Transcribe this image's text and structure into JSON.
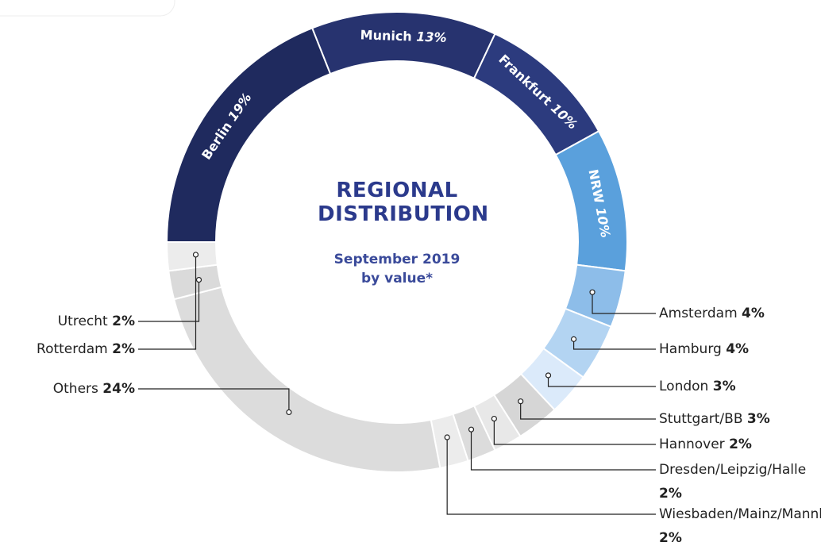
{
  "chart_data": {
    "type": "donut",
    "title": "REGIONAL DISTRIBUTION",
    "subtitle": "September 2019 by value*",
    "categories": [
      "Berlin",
      "Munich",
      "Frankfurt",
      "NRW",
      "Amsterdam",
      "Hamburg",
      "London",
      "Stuttgart/BB",
      "Hannover",
      "Dresden/Leipzig/Halle",
      "Wiesbaden/Mainz/Mannheim",
      "Others",
      "Utrecht",
      "Rotterdam"
    ],
    "values": [
      19,
      13,
      10,
      10,
      4,
      4,
      3,
      3,
      2,
      2,
      2,
      24,
      2,
      2
    ],
    "value_labels": [
      "19%",
      "13%",
      "10%",
      "10%",
      "4%",
      "4%",
      "3%",
      "3%",
      "2%",
      "2%",
      "2%",
      "24%",
      "2%",
      "2%"
    ],
    "colors": [
      "#1f2a5e",
      "#27336f",
      "#2c3b7e",
      "#5aa0dc",
      "#8dbde9",
      "#b3d4f2",
      "#dbeafa",
      "#d6d6d6",
      "#e8e8e8",
      "#dcdcdc",
      "#ececec",
      "#dcdcdc",
      "#dadada",
      "#ececec"
    ]
  }
}
